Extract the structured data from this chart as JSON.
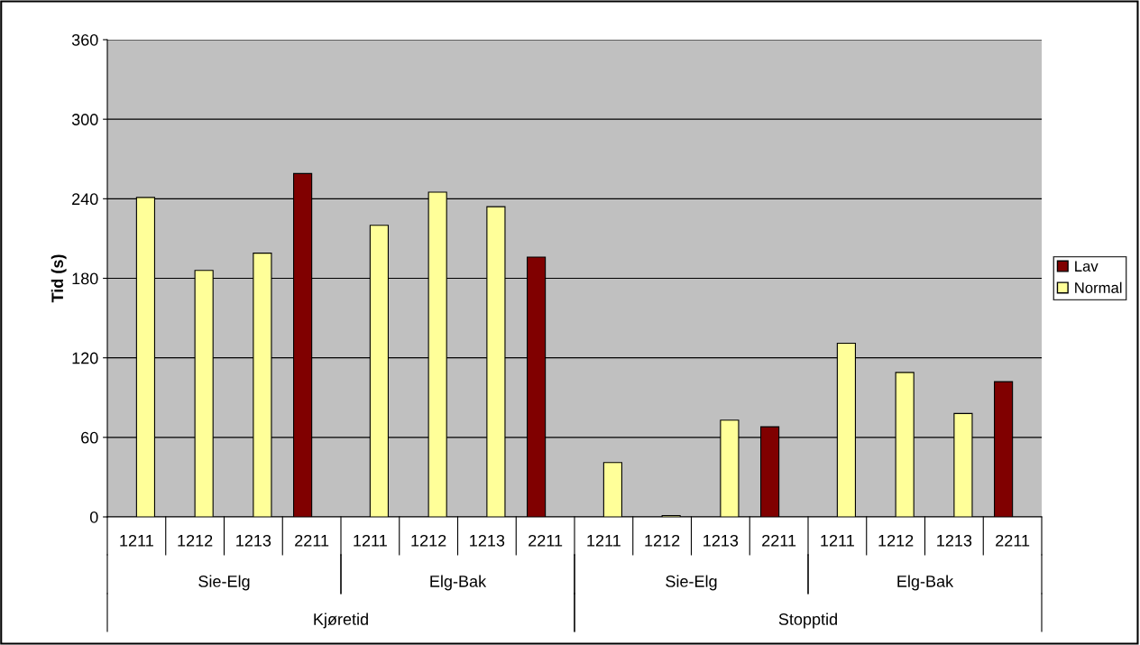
{
  "chart_data": {
    "type": "bar",
    "ylabel": "Tid (s)",
    "categories": [
      "1211",
      "1212",
      "1213",
      "2211",
      "1211",
      "1212",
      "1213",
      "2211",
      "1211",
      "1212",
      "1213",
      "2211",
      "1211",
      "1212",
      "1213",
      "2211"
    ],
    "series": [
      {
        "name": "Lav",
        "color": "#800000",
        "values": [
          null,
          null,
          null,
          259,
          null,
          null,
          null,
          196,
          null,
          null,
          null,
          68,
          null,
          null,
          null,
          102
        ]
      },
      {
        "name": "Normal",
        "color": "#ffff99",
        "values": [
          241,
          186,
          199,
          null,
          220,
          245,
          234,
          null,
          41,
          1,
          73,
          null,
          131,
          109,
          78,
          null
        ]
      }
    ],
    "annotations": [
      "Sie-Elg",
      "Elg-Bak",
      "Sie-Elg",
      "Elg-Bak",
      "Kjøretid",
      "Stopptid"
    ],
    "ylim": [
      0,
      360
    ],
    "yticks": [
      0,
      60,
      120,
      180,
      240,
      300,
      360
    ],
    "grid": "y",
    "legend": "right"
  }
}
